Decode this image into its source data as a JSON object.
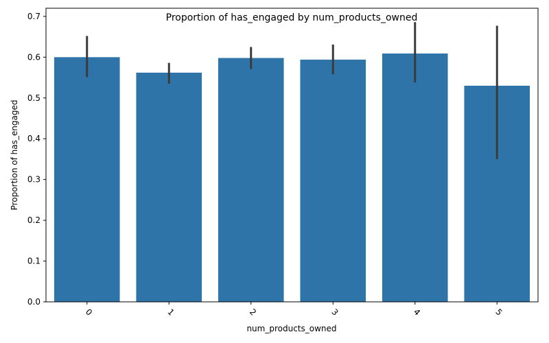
{
  "chart_data": {
    "type": "bar",
    "title": "Proportion of has_engaged by num_products_owned",
    "xlabel": "num_products_owned",
    "ylabel": "Proportion of has_engaged",
    "categories": [
      "0",
      "1",
      "2",
      "3",
      "4",
      "5"
    ],
    "values": [
      0.6,
      0.562,
      0.598,
      0.594,
      0.609,
      0.53
    ],
    "error_low": [
      0.551,
      0.535,
      0.571,
      0.558,
      0.538,
      0.35
    ],
    "error_high": [
      0.652,
      0.586,
      0.625,
      0.631,
      0.686,
      0.677
    ],
    "ylim": [
      0,
      0.72
    ],
    "yticks": [
      0.0,
      0.1,
      0.2,
      0.3,
      0.4,
      0.5,
      0.6,
      0.7
    ],
    "ytick_labels": [
      "0.0",
      "0.1",
      "0.2",
      "0.3",
      "0.4",
      "0.5",
      "0.6",
      "0.7"
    ],
    "grid": false,
    "legend": "none",
    "colors": {
      "bar": "#2f74a8",
      "error": "#3a3a3a",
      "axis": "#000000"
    }
  }
}
